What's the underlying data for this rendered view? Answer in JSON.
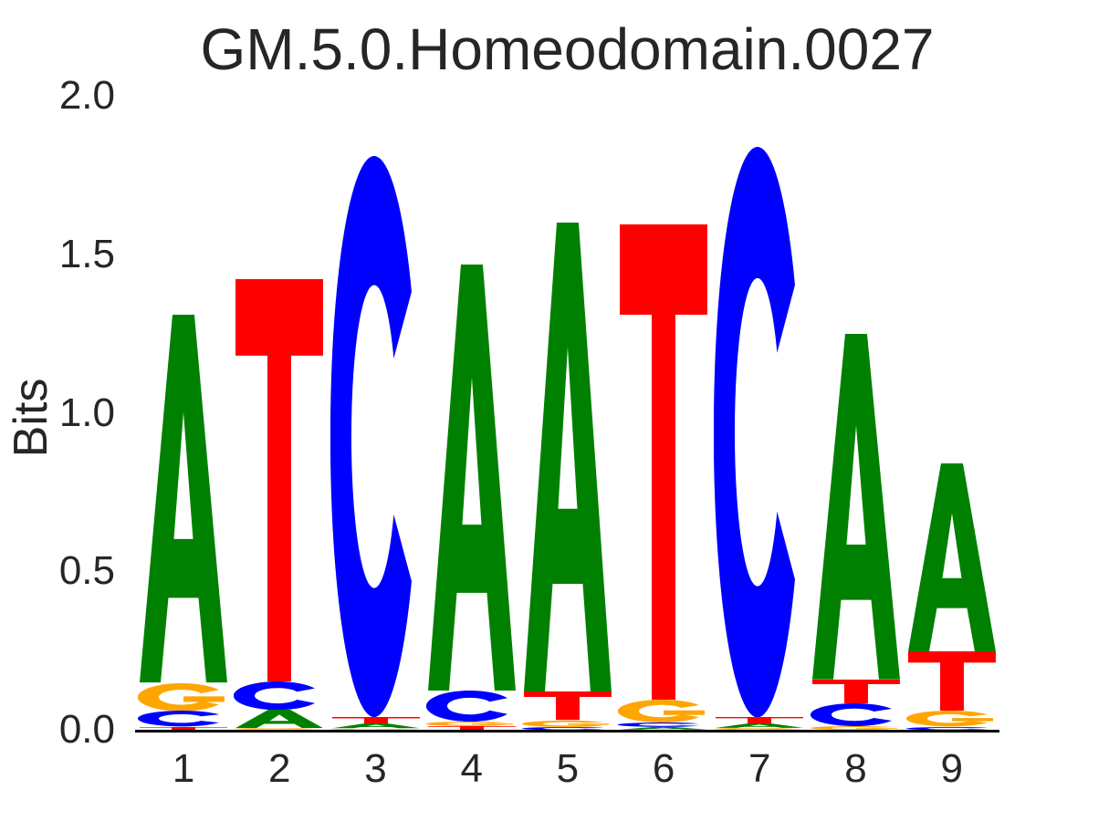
{
  "chart_data": {
    "type": "bar",
    "variant": "sequence_logo",
    "title": "GM.5.0.Homeodomain.0027",
    "xlabel": "",
    "ylabel": "Bits",
    "ylim": [
      0,
      2
    ],
    "grid": false,
    "legend": false,
    "yticks": [
      {
        "value": 0.0,
        "label": "0.0"
      },
      {
        "value": 0.5,
        "label": "0.5"
      },
      {
        "value": 1.0,
        "label": "1.0"
      },
      {
        "value": 1.5,
        "label": "1.5"
      },
      {
        "value": 2.0,
        "label": "2.0"
      }
    ],
    "categories": [
      "1",
      "2",
      "3",
      "4",
      "5",
      "6",
      "7",
      "8",
      "9"
    ],
    "consensus": "ATCAATCAA",
    "positions": [
      {
        "position": 1,
        "letters": [
          {
            "base": "T",
            "bits": 0.01
          },
          {
            "base": "C",
            "bits": 0.05
          },
          {
            "base": "G",
            "bits": 0.088
          },
          {
            "base": "A",
            "bits": 1.16
          }
        ]
      },
      {
        "position": 2,
        "letters": [
          {
            "base": "G",
            "bits": 0.005
          },
          {
            "base": "A",
            "bits": 0.058
          },
          {
            "base": "C",
            "bits": 0.09
          },
          {
            "base": "T",
            "bits": 1.27
          }
        ]
      },
      {
        "position": 3,
        "letters": [
          {
            "base": "G",
            "bits": 0.004
          },
          {
            "base": "A",
            "bits": 0.015
          },
          {
            "base": "T",
            "bits": 0.022
          },
          {
            "base": "C",
            "bits": 1.77
          }
        ]
      },
      {
        "position": 4,
        "letters": [
          {
            "base": "T",
            "bits": 0.012
          },
          {
            "base": "G",
            "bits": 0.014
          },
          {
            "base": "C",
            "bits": 0.098
          },
          {
            "base": "A",
            "bits": 1.345
          }
        ]
      },
      {
        "position": 5,
        "letters": [
          {
            "base": "C",
            "bits": 0.01
          },
          {
            "base": "G",
            "bits": 0.02
          },
          {
            "base": "T",
            "bits": 0.09
          },
          {
            "base": "A",
            "bits": 1.48
          }
        ]
      },
      {
        "position": 6,
        "letters": [
          {
            "base": "A",
            "bits": 0.008
          },
          {
            "base": "C",
            "bits": 0.014
          },
          {
            "base": "G",
            "bits": 0.072
          },
          {
            "base": "T",
            "bits": 1.5
          }
        ]
      },
      {
        "position": 7,
        "letters": [
          {
            "base": "G",
            "bits": 0.006
          },
          {
            "base": "A",
            "bits": 0.014
          },
          {
            "base": "T",
            "bits": 0.02
          },
          {
            "base": "C",
            "bits": 1.8
          }
        ]
      },
      {
        "position": 8,
        "letters": [
          {
            "base": "G",
            "bits": 0.012
          },
          {
            "base": "C",
            "bits": 0.072
          },
          {
            "base": "T",
            "bits": 0.075
          },
          {
            "base": "A",
            "bits": 1.09
          }
        ]
      },
      {
        "position": 9,
        "letters": [
          {
            "base": "C",
            "bits": 0.01
          },
          {
            "base": "G",
            "bits": 0.05
          },
          {
            "base": "T",
            "bits": 0.187
          },
          {
            "base": "A",
            "bits": 0.593
          }
        ]
      }
    ],
    "colors": {
      "A": "#008000",
      "C": "#0000ff",
      "G": "#ffa500",
      "T": "#ff0000"
    },
    "text_color": "#262626",
    "axis_line_color": "#000000"
  }
}
